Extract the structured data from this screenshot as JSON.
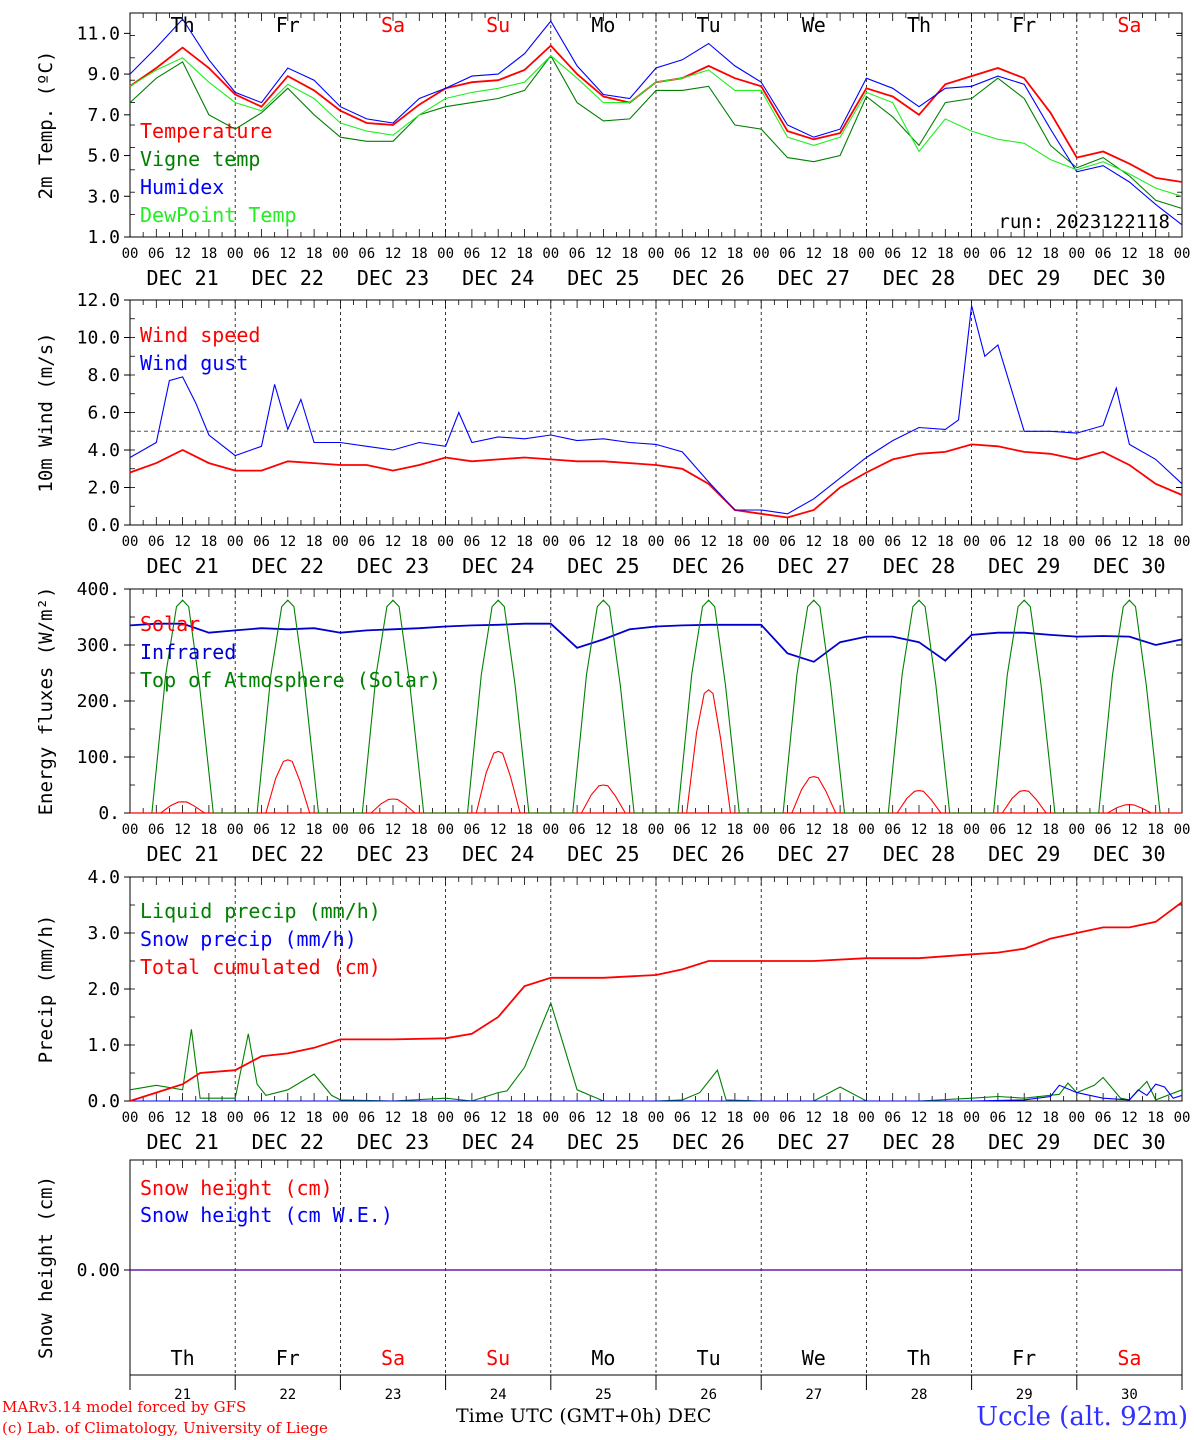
{
  "chart_data": [
    {
      "type": "line",
      "ylabel": "2m Temp. (ºC)",
      "ylim": [
        1.0,
        12.0
      ],
      "yticks": [
        "1.0",
        "3.0",
        "5.0",
        "7.0",
        "9.0",
        "11.0"
      ],
      "annotation": "run: 2023122118",
      "x_unit": "hours since DEC 21 00 UTC",
      "series": [
        {
          "name": "Temperature",
          "color": "#ff0000",
          "x": [
            0,
            6,
            12,
            18,
            24,
            30,
            36,
            42,
            48,
            54,
            60,
            66,
            72,
            78,
            84,
            90,
            96,
            102,
            108,
            114,
            120,
            126,
            132,
            138,
            144,
            150,
            156,
            162,
            168,
            174,
            180,
            186,
            192,
            198,
            204,
            210,
            216,
            222,
            228,
            234,
            240
          ],
          "values": [
            8.4,
            9.3,
            10.3,
            9.3,
            8.0,
            7.4,
            8.9,
            8.2,
            7.2,
            6.6,
            6.5,
            7.5,
            8.3,
            8.6,
            8.7,
            9.2,
            10.4,
            9.0,
            7.9,
            7.6,
            8.6,
            8.8,
            9.4,
            8.8,
            8.4,
            6.2,
            5.8,
            6.1,
            8.3,
            7.9,
            7.0,
            8.5,
            8.9,
            9.3,
            8.8,
            7.1,
            4.9,
            5.2,
            4.6,
            3.9,
            3.7
          ]
        },
        {
          "name": "Vigne temp",
          "color": "#008000",
          "x": [
            0,
            6,
            12,
            18,
            24,
            30,
            36,
            42,
            48,
            54,
            60,
            66,
            72,
            78,
            84,
            90,
            96,
            102,
            108,
            114,
            120,
            126,
            132,
            138,
            144,
            150,
            156,
            162,
            168,
            174,
            180,
            186,
            192,
            198,
            204,
            210,
            216,
            222,
            228,
            234,
            240
          ],
          "values": [
            7.6,
            8.8,
            9.6,
            7.0,
            6.3,
            7.1,
            8.3,
            7.0,
            5.9,
            5.7,
            5.7,
            7.0,
            7.4,
            7.6,
            7.8,
            8.2,
            9.9,
            7.6,
            6.7,
            6.8,
            8.2,
            8.2,
            8.4,
            6.5,
            6.3,
            4.9,
            4.7,
            5.0,
            7.9,
            6.9,
            5.5,
            7.6,
            7.8,
            8.8,
            7.8,
            5.5,
            4.4,
            4.9,
            4.0,
            2.8,
            2.4
          ]
        },
        {
          "name": "Humidex",
          "color": "#0000ff",
          "x": [
            0,
            6,
            12,
            18,
            24,
            30,
            36,
            42,
            48,
            54,
            60,
            66,
            72,
            78,
            84,
            90,
            96,
            102,
            108,
            114,
            120,
            126,
            132,
            138,
            144,
            150,
            156,
            162,
            168,
            174,
            180,
            186,
            192,
            198,
            204,
            210,
            216,
            222,
            228,
            234,
            240
          ],
          "values": [
            9.0,
            10.3,
            11.7,
            9.7,
            8.1,
            7.6,
            9.3,
            8.7,
            7.4,
            6.8,
            6.6,
            7.8,
            8.3,
            8.9,
            9.0,
            10.0,
            11.6,
            9.4,
            8.0,
            7.8,
            9.3,
            9.7,
            10.5,
            9.4,
            8.6,
            6.5,
            5.9,
            6.3,
            8.8,
            8.3,
            7.4,
            8.3,
            8.4,
            8.9,
            8.5,
            6.3,
            4.2,
            4.5,
            3.7,
            2.6,
            1.6
          ]
        },
        {
          "name": "DewPoint Temp",
          "color": "#22ee22",
          "x": [
            0,
            6,
            12,
            18,
            24,
            30,
            36,
            42,
            48,
            54,
            60,
            66,
            72,
            78,
            84,
            90,
            96,
            102,
            108,
            114,
            120,
            126,
            132,
            138,
            144,
            150,
            156,
            162,
            168,
            174,
            180,
            186,
            192,
            198,
            204,
            210,
            216,
            222,
            228,
            234,
            240
          ],
          "values": [
            8.4,
            9.2,
            9.8,
            8.6,
            7.6,
            7.2,
            8.5,
            7.8,
            6.6,
            6.2,
            6.0,
            7.0,
            7.8,
            8.1,
            8.3,
            8.6,
            9.9,
            8.8,
            7.6,
            7.6,
            8.6,
            8.8,
            9.2,
            8.2,
            8.2,
            5.9,
            5.5,
            5.9,
            8.1,
            7.6,
            5.2,
            6.8,
            6.2,
            5.8,
            5.6,
            4.8,
            4.3,
            4.7,
            4.1,
            3.4,
            3.0
          ]
        }
      ]
    },
    {
      "type": "line",
      "ylabel": "10m Wind (m/s)",
      "ylim": [
        0.0,
        12.0
      ],
      "yticks": [
        "0.0",
        "2.0",
        "4.0",
        "6.0",
        "8.0",
        "10.0",
        "12.0"
      ],
      "reference_line": 5.0,
      "series": [
        {
          "name": "Wind speed",
          "color": "#ff0000",
          "x": [
            0,
            6,
            12,
            18,
            24,
            30,
            36,
            42,
            48,
            54,
            60,
            66,
            72,
            78,
            84,
            90,
            96,
            102,
            108,
            114,
            120,
            126,
            132,
            138,
            144,
            150,
            156,
            162,
            168,
            174,
            180,
            186,
            192,
            198,
            204,
            210,
            216,
            222,
            228,
            234,
            240
          ],
          "values": [
            2.8,
            3.3,
            4.0,
            3.3,
            2.9,
            2.9,
            3.4,
            3.3,
            3.2,
            3.2,
            2.9,
            3.2,
            3.6,
            3.4,
            3.5,
            3.6,
            3.5,
            3.4,
            3.4,
            3.3,
            3.2,
            3.0,
            2.2,
            0.8,
            0.6,
            0.4,
            0.8,
            2.0,
            2.8,
            3.5,
            3.8,
            3.9,
            4.3,
            4.2,
            3.9,
            3.8,
            3.5,
            3.9,
            3.2,
            2.2,
            1.6
          ]
        },
        {
          "name": "Wind gust",
          "color": "#0000ff",
          "x": [
            0,
            6,
            9,
            12,
            15,
            18,
            24,
            30,
            33,
            36,
            39,
            42,
            48,
            54,
            60,
            66,
            72,
            75,
            78,
            84,
            90,
            96,
            102,
            108,
            114,
            120,
            126,
            132,
            138,
            144,
            150,
            156,
            162,
            168,
            174,
            180,
            186,
            189,
            192,
            195,
            198,
            204,
            210,
            216,
            222,
            225,
            228,
            234,
            240
          ],
          "values": [
            3.6,
            4.4,
            7.7,
            7.9,
            6.5,
            4.8,
            3.7,
            4.2,
            7.5,
            5.1,
            6.7,
            4.4,
            4.4,
            4.2,
            4.0,
            4.4,
            4.2,
            6.0,
            4.4,
            4.7,
            4.6,
            4.8,
            4.5,
            4.6,
            4.4,
            4.3,
            3.9,
            2.3,
            0.8,
            0.8,
            0.6,
            1.4,
            2.5,
            3.6,
            4.5,
            5.2,
            5.1,
            5.6,
            11.7,
            9.0,
            9.6,
            5.0,
            5.0,
            4.9,
            5.3,
            7.3,
            4.3,
            3.5,
            2.2
          ]
        }
      ]
    },
    {
      "type": "line",
      "ylabel": "Energy fluxes (W/m²)",
      "ylim": [
        0,
        400
      ],
      "yticks": [
        "0.",
        "100.",
        "200.",
        "300.",
        "400."
      ],
      "series": [
        {
          "name": "Solar",
          "color": "#ff0000",
          "peak_hour": 12,
          "peaks": [
            20,
            95,
            25,
            110,
            50,
            220,
            65,
            40,
            40,
            15
          ]
        },
        {
          "name": "Infrared",
          "color": "#0000cc",
          "x": [
            0,
            6,
            12,
            18,
            24,
            30,
            36,
            42,
            48,
            54,
            60,
            66,
            72,
            78,
            84,
            90,
            96,
            102,
            108,
            114,
            120,
            126,
            132,
            138,
            144,
            150,
            156,
            162,
            168,
            174,
            180,
            186,
            192,
            198,
            204,
            210,
            216,
            222,
            228,
            234,
            240
          ],
          "values": [
            335,
            338,
            338,
            322,
            326,
            330,
            328,
            330,
            322,
            326,
            328,
            330,
            333,
            335,
            336,
            338,
            338,
            295,
            310,
            328,
            333,
            335,
            336,
            336,
            336,
            285,
            270,
            305,
            315,
            315,
            305,
            272,
            318,
            322,
            322,
            318,
            315,
            316,
            315,
            300,
            310
          ]
        },
        {
          "name": "Top of Atmosphere (Solar)",
          "color": "#008000",
          "peak_hour": 12,
          "peaks": [
            380,
            380,
            380,
            380,
            380,
            380,
            380,
            380,
            380,
            380
          ]
        }
      ]
    },
    {
      "type": "line",
      "ylabel": "Precip (mm/h)",
      "ylim": [
        0.0,
        4.0
      ],
      "yticks": [
        "0.0",
        "1.0",
        "2.0",
        "3.0",
        "4.0"
      ],
      "series": [
        {
          "name": "Liquid precip (mm/h)",
          "color": "#008000",
          "x": [
            0,
            6,
            12,
            14,
            16,
            24,
            27,
            29,
            31,
            36,
            42,
            46,
            48,
            60,
            72,
            78,
            84,
            86,
            90,
            96,
            102,
            108,
            120,
            126,
            130,
            134,
            136,
            144,
            156,
            162,
            168,
            180,
            192,
            198,
            204,
            212,
            214,
            216,
            220,
            222,
            226,
            228,
            232,
            234,
            240
          ],
          "values": [
            0.2,
            0.28,
            0.2,
            1.28,
            0.05,
            0.05,
            1.2,
            0.3,
            0.1,
            0.2,
            0.48,
            0.1,
            0.02,
            0.0,
            0.05,
            0.0,
            0.15,
            0.18,
            0.6,
            1.75,
            0.2,
            0.0,
            0.0,
            0.02,
            0.15,
            0.55,
            0.02,
            0.0,
            0.0,
            0.25,
            0.0,
            0.0,
            0.05,
            0.08,
            0.05,
            0.12,
            0.32,
            0.15,
            0.28,
            0.42,
            0.05,
            0.02,
            0.35,
            0.02,
            0.2
          ]
        },
        {
          "name": "Snow precip (mm/h)",
          "color": "#0000ff",
          "x": [
            0,
            24,
            48,
            72,
            96,
            120,
            144,
            168,
            192,
            204,
            210,
            212,
            216,
            222,
            228,
            230,
            232,
            234,
            236,
            238,
            240
          ],
          "values": [
            0.0,
            0.0,
            0.0,
            0.0,
            0.0,
            0.0,
            0.0,
            0.0,
            0.0,
            0.02,
            0.08,
            0.28,
            0.15,
            0.05,
            0.02,
            0.2,
            0.1,
            0.3,
            0.25,
            0.05,
            0.1
          ]
        },
        {
          "name": "Total cumulated (cm)",
          "color": "#ff0000",
          "x": [
            0,
            6,
            12,
            16,
            24,
            30,
            36,
            42,
            48,
            60,
            72,
            78,
            84,
            90,
            96,
            102,
            108,
            120,
            126,
            132,
            138,
            144,
            156,
            168,
            180,
            192,
            198,
            204,
            210,
            216,
            222,
            228,
            234,
            240
          ],
          "values": [
            0.0,
            0.15,
            0.3,
            0.5,
            0.55,
            0.8,
            0.85,
            0.95,
            1.1,
            1.1,
            1.12,
            1.2,
            1.5,
            2.05,
            2.2,
            2.2,
            2.2,
            2.25,
            2.35,
            2.5,
            2.5,
            2.5,
            2.5,
            2.55,
            2.55,
            2.62,
            2.65,
            2.72,
            2.9,
            3.0,
            3.1,
            3.1,
            3.2,
            3.55
          ]
        }
      ]
    },
    {
      "type": "line",
      "ylabel": "Snow height (cm)",
      "yticks": [
        "0.00"
      ],
      "series": [
        {
          "name": "Snow height (cm)",
          "color": "#ff0000",
          "x": [
            0,
            240
          ],
          "values": [
            0.0,
            0.0
          ]
        },
        {
          "name": "Snow height (cm W.E.)",
          "color": "#0000ff",
          "x": [
            0,
            240
          ],
          "values": [
            0.0,
            0.0
          ]
        }
      ]
    }
  ],
  "days": {
    "weekday_labels": [
      "Th",
      "Fr",
      "Sa",
      "Su",
      "Mo",
      "Tu",
      "We",
      "Th",
      "Fr",
      "Sa"
    ],
    "weekday_colors": [
      "#000000",
      "#000000",
      "#ff0000",
      "#ff0000",
      "#000000",
      "#000000",
      "#000000",
      "#000000",
      "#000000",
      "#ff0000"
    ],
    "date_labels": [
      "DEC 21",
      "DEC 22",
      "DEC 23",
      "DEC 24",
      "DEC 25",
      "DEC 26",
      "DEC 27",
      "DEC 28",
      "DEC 29",
      "DEC 30"
    ],
    "day_numbers": [
      "21",
      "22",
      "23",
      "24",
      "25",
      "26",
      "27",
      "28",
      "29",
      "30"
    ],
    "hour_labels": [
      "00",
      "06",
      "12",
      "18"
    ],
    "final_hour_label": "00"
  },
  "footer": {
    "model_credit": "MARv3.14 model forced by GFS",
    "lab_credit": "(c) Lab. of Climatology, University of Liege",
    "x_title": "Time UTC (GMT+0h) DEC",
    "station": "Uccle (alt. 92m)"
  }
}
